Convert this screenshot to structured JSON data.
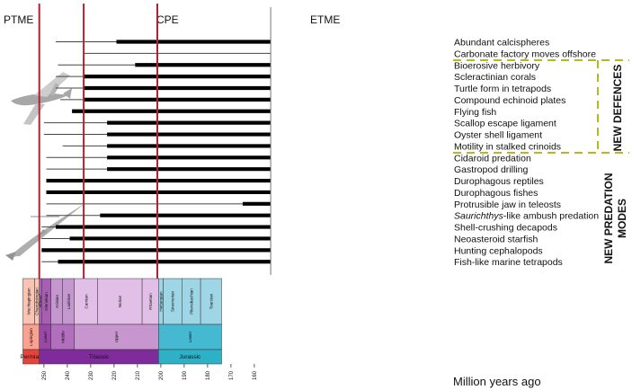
{
  "chart_data": {
    "type": "timeline",
    "xlabel": "Million years ago",
    "xlim": [
      257,
      153
    ],
    "ticks": [
      250,
      240,
      230,
      220,
      210,
      200,
      190,
      180,
      170,
      160
    ],
    "extinction_events": [
      {
        "name": "PTME",
        "age": 252
      },
      {
        "name": "CPE",
        "age": 233
      },
      {
        "name": "ETME",
        "age": 201.5
      }
    ],
    "innovations": [
      {
        "name": "Abundant calcispheres",
        "first_ma": 245,
        "intensify_ma": 219
      },
      {
        "name": "Carbonate factory moves offshore",
        "first_ma": 233,
        "intensify_ma": null
      },
      {
        "name": "Bioerosive herbivory",
        "first_ma": 244,
        "intensify_ma": 211
      },
      {
        "name": "Scleractinian corals",
        "first_ma": 245,
        "intensify_ma": 233
      },
      {
        "name": "Turtle form in tetrapods",
        "first_ma": 245,
        "intensify_ma": 233
      },
      {
        "name": "Compound echinoid plates",
        "first_ma": 243,
        "intensify_ma": 233
      },
      {
        "name": "Flying fish",
        "first_ma": 238,
        "intensify_ma": 238
      },
      {
        "name": "Scallop escape ligament",
        "first_ma": 250,
        "intensify_ma": 223
      },
      {
        "name": "Oyster shell ligament",
        "first_ma": 250,
        "intensify_ma": 223
      },
      {
        "name": "Motility in stalked crinoids",
        "first_ma": 242,
        "intensify_ma": 223
      },
      {
        "name": "Cidaroid predation",
        "first_ma": 249,
        "intensify_ma": 223
      },
      {
        "name": "Gastropod drilling",
        "first_ma": 249,
        "intensify_ma": 223
      },
      {
        "name": "Durophagous reptiles",
        "first_ma": 249,
        "intensify_ma": 249
      },
      {
        "name": "Durophagous fishes",
        "first_ma": 249,
        "intensify_ma": 249
      },
      {
        "name": "Protrusible jaw in teleosts",
        "first_ma": 249,
        "intensify_ma": 165
      },
      {
        "name": "Saurichthys-like ambush predation",
        "first_ma": 249,
        "intensify_ma": 226
      },
      {
        "name": "Shell-crushing decapods",
        "first_ma": 251,
        "intensify_ma": 245
      },
      {
        "name": "Neoasteroid starfish",
        "first_ma": 251,
        "intensify_ma": 239
      },
      {
        "name": "Hunting cephalopods",
        "first_ma": 251,
        "intensify_ma": 251
      },
      {
        "name": "Fish-like marine tetrapods",
        "first_ma": 251,
        "intensify_ma": 244
      }
    ],
    "annotations": {
      "saurichthys_label": {
        "italic": "Saurichthys",
        "rest": "-like ambush predation"
      },
      "new_defences": "NEW DEFENCES",
      "new_predation_modes_line1": "NEW PREDATION",
      "new_predation_modes_line2": "MODES"
    },
    "timescale": {
      "stages": [
        {
          "name": "Wuchiapingian",
          "start": 259,
          "end": 254,
          "color": "#fbc3b3"
        },
        {
          "name": "Changhsingian",
          "start": 254,
          "end": 252,
          "color": "#fbc7b7"
        },
        {
          "name": "Induan",
          "start": 252,
          "end": 251,
          "color": "#a85fb3"
        },
        {
          "name": "Olenekian",
          "start": 251,
          "end": 247,
          "color": "#a85fb3"
        },
        {
          "name": "Anisian",
          "start": 247,
          "end": 242,
          "color": "#c497cf"
        },
        {
          "name": "Ladinian",
          "start": 242,
          "end": 237,
          "color": "#c497cf"
        },
        {
          "name": "Carnian",
          "start": 237,
          "end": 227,
          "color": "#e2bfe6"
        },
        {
          "name": "Norian",
          "start": 227,
          "end": 208,
          "color": "#e2bfe6"
        },
        {
          "name": "Rhaetian",
          "start": 208,
          "end": 201,
          "color": "#e2bfe6"
        },
        {
          "name": "Hettangian",
          "start": 201,
          "end": 199,
          "color": "#9fd6e6"
        },
        {
          "name": "Sinemurian",
          "start": 199,
          "end": 191,
          "color": "#9fd6e6"
        },
        {
          "name": "Pliensbachian",
          "start": 191,
          "end": 183,
          "color": "#9fd6e6"
        },
        {
          "name": "Toarcian",
          "start": 183,
          "end": 174,
          "color": "#9fd6e6"
        }
      ],
      "epochs": [
        {
          "name": "Lopingian",
          "start": 259,
          "end": 252,
          "color": "#fba18f"
        },
        {
          "name": "Lower",
          "start": 252,
          "end": 247,
          "color": "#9a48a8"
        },
        {
          "name": "Middle",
          "start": 247,
          "end": 237,
          "color": "#b16fbe"
        },
        {
          "name": "Upper",
          "start": 237,
          "end": 201,
          "color": "#c796cf"
        },
        {
          "name": "Lower",
          "start": 201,
          "end": 174,
          "color": "#45b8d2"
        }
      ],
      "periods": [
        {
          "name": "Permian",
          "start": 259,
          "end": 252,
          "color": "#e8433a"
        },
        {
          "name": "Triassic",
          "start": 252,
          "end": 201,
          "color": "#7f2b9c"
        },
        {
          "name": "Jurassic",
          "start": 201,
          "end": 174,
          "color": "#2db1c6"
        }
      ]
    }
  },
  "colors": {
    "extinction_line": "#b5202e",
    "bar": "#000000",
    "thin_line": "#444444",
    "dashed": "#b6b81e"
  }
}
